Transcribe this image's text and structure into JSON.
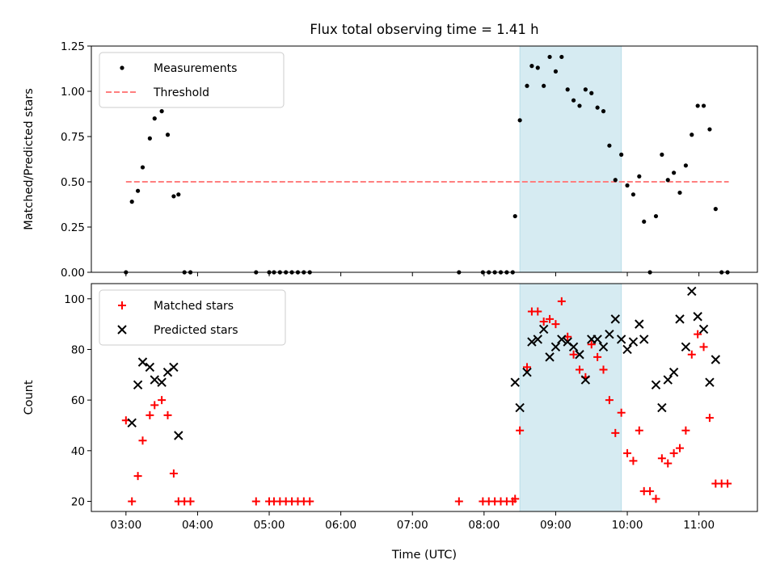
{
  "title": "Flux total observing time = 1.41 h",
  "xlabel": "Time (UTC)",
  "x_ticks": [
    "03:00",
    "04:00",
    "05:00",
    "06:00",
    "07:00",
    "08:00",
    "09:00",
    "10:00",
    "11:00"
  ],
  "colors": {
    "measurement": "#000000",
    "threshold": "#ff7f7f",
    "matched": "#ff0000",
    "predicted": "#000000",
    "shade": "#add8e6"
  },
  "chart_data": [
    {
      "type": "scatter",
      "ylabel": "Matched/Predicted stars",
      "xlim": [
        "02:31",
        "11:49"
      ],
      "ylim": [
        0,
        1.25
      ],
      "y_ticks": [
        "0.00",
        "0.25",
        "0.50",
        "0.75",
        "1.00",
        "1.25"
      ],
      "legend": {
        "placement": "top-left",
        "entries": [
          "Measurements",
          "Threshold"
        ]
      },
      "shaded_span": {
        "start": "08:30",
        "end": "09:55"
      },
      "threshold": {
        "name": "Threshold",
        "y": 0.5,
        "x_range": [
          "03:00",
          "11:25"
        ]
      },
      "series": [
        {
          "name": "Measurements",
          "marker": "dot",
          "points": [
            [
              "03:00",
              0.0
            ],
            [
              "03:05",
              0.39
            ],
            [
              "03:10",
              0.45
            ],
            [
              "03:14",
              0.58
            ],
            [
              "03:20",
              0.74
            ],
            [
              "03:24",
              0.85
            ],
            [
              "03:30",
              0.89
            ],
            [
              "03:35",
              0.76
            ],
            [
              "03:40",
              0.42
            ],
            [
              "03:44",
              0.43
            ],
            [
              "03:49",
              0.0
            ],
            [
              "03:54",
              0.0
            ],
            [
              "04:49",
              0.0
            ],
            [
              "05:00",
              0.0
            ],
            [
              "05:04",
              0.0
            ],
            [
              "05:09",
              0.0
            ],
            [
              "05:14",
              0.0
            ],
            [
              "05:19",
              0.0
            ],
            [
              "05:24",
              0.0
            ],
            [
              "05:29",
              0.0
            ],
            [
              "05:34",
              0.0
            ],
            [
              "07:39",
              0.0
            ],
            [
              "07:59",
              0.0
            ],
            [
              "08:04",
              0.0
            ],
            [
              "08:09",
              0.0
            ],
            [
              "08:14",
              0.0
            ],
            [
              "08:19",
              0.0
            ],
            [
              "08:24",
              0.0
            ],
            [
              "08:26",
              0.31
            ],
            [
              "08:30",
              0.84
            ],
            [
              "08:36",
              1.03
            ],
            [
              "08:40",
              1.14
            ],
            [
              "08:45",
              1.13
            ],
            [
              "08:50",
              1.03
            ],
            [
              "08:55",
              1.19
            ],
            [
              "09:00",
              1.11
            ],
            [
              "09:05",
              1.19
            ],
            [
              "09:10",
              1.01
            ],
            [
              "09:15",
              0.95
            ],
            [
              "09:20",
              0.92
            ],
            [
              "09:25",
              1.01
            ],
            [
              "09:30",
              0.99
            ],
            [
              "09:35",
              0.91
            ],
            [
              "09:40",
              0.89
            ],
            [
              "09:45",
              0.7
            ],
            [
              "09:50",
              0.51
            ],
            [
              "09:55",
              0.65
            ],
            [
              "10:00",
              0.48
            ],
            [
              "10:05",
              0.43
            ],
            [
              "10:10",
              0.53
            ],
            [
              "10:14",
              0.28
            ],
            [
              "10:19",
              0.0
            ],
            [
              "10:24",
              0.31
            ],
            [
              "10:29",
              0.65
            ],
            [
              "10:34",
              0.51
            ],
            [
              "10:39",
              0.55
            ],
            [
              "10:44",
              0.44
            ],
            [
              "10:49",
              0.59
            ],
            [
              "10:54",
              0.76
            ],
            [
              "10:59",
              0.92
            ],
            [
              "11:04",
              0.92
            ],
            [
              "11:09",
              0.79
            ],
            [
              "11:14",
              0.35
            ],
            [
              "11:19",
              0.0
            ],
            [
              "11:24",
              0.0
            ]
          ]
        }
      ]
    },
    {
      "type": "scatter",
      "ylabel": "Count",
      "xlabel": "Time (UTC)",
      "xlim": [
        "02:31",
        "11:49"
      ],
      "ylim": [
        16,
        106
      ],
      "y_ticks": [
        "20",
        "40",
        "60",
        "80",
        "100"
      ],
      "legend": {
        "placement": "top-left",
        "entries": [
          "Matched stars",
          "Predicted stars"
        ]
      },
      "shaded_span": {
        "start": "08:30",
        "end": "09:55"
      },
      "series": [
        {
          "name": "Matched stars",
          "marker": "plus",
          "points": [
            [
              "03:00",
              52
            ],
            [
              "03:05",
              20
            ],
            [
              "03:10",
              30
            ],
            [
              "03:14",
              44
            ],
            [
              "03:20",
              54
            ],
            [
              "03:24",
              58
            ],
            [
              "03:30",
              60
            ],
            [
              "03:35",
              54
            ],
            [
              "03:40",
              31
            ],
            [
              "03:44",
              20
            ],
            [
              "03:49",
              20
            ],
            [
              "03:54",
              20
            ],
            [
              "04:49",
              20
            ],
            [
              "05:00",
              20
            ],
            [
              "05:04",
              20
            ],
            [
              "05:09",
              20
            ],
            [
              "05:14",
              20
            ],
            [
              "05:19",
              20
            ],
            [
              "05:24",
              20
            ],
            [
              "05:29",
              20
            ],
            [
              "05:34",
              20
            ],
            [
              "07:39",
              20
            ],
            [
              "07:59",
              20
            ],
            [
              "08:04",
              20
            ],
            [
              "08:09",
              20
            ],
            [
              "08:14",
              20
            ],
            [
              "08:19",
              20
            ],
            [
              "08:24",
              20
            ],
            [
              "08:26",
              21
            ],
            [
              "08:30",
              48
            ],
            [
              "08:36",
              73
            ],
            [
              "08:40",
              95
            ],
            [
              "08:45",
              95
            ],
            [
              "08:50",
              91
            ],
            [
              "08:55",
              92
            ],
            [
              "09:00",
              90
            ],
            [
              "09:05",
              99
            ],
            [
              "09:10",
              85
            ],
            [
              "09:15",
              78
            ],
            [
              "09:20",
              72
            ],
            [
              "09:25",
              69
            ],
            [
              "09:30",
              82
            ],
            [
              "09:35",
              77
            ],
            [
              "09:40",
              72
            ],
            [
              "09:45",
              60
            ],
            [
              "09:50",
              47
            ],
            [
              "09:55",
              55
            ],
            [
              "10:00",
              39
            ],
            [
              "10:05",
              36
            ],
            [
              "10:10",
              48
            ],
            [
              "10:14",
              24
            ],
            [
              "10:19",
              24
            ],
            [
              "10:24",
              21
            ],
            [
              "10:29",
              37
            ],
            [
              "10:34",
              35
            ],
            [
              "10:39",
              39
            ],
            [
              "10:44",
              41
            ],
            [
              "10:49",
              48
            ],
            [
              "10:54",
              78
            ],
            [
              "10:59",
              86
            ],
            [
              "11:04",
              81
            ],
            [
              "11:09",
              53
            ],
            [
              "11:14",
              27
            ],
            [
              "11:19",
              27
            ],
            [
              "11:24",
              27
            ]
          ]
        },
        {
          "name": "Predicted stars",
          "marker": "x",
          "points": [
            [
              "03:05",
              51
            ],
            [
              "03:10",
              66
            ],
            [
              "03:14",
              75
            ],
            [
              "03:20",
              73
            ],
            [
              "03:24",
              68
            ],
            [
              "03:30",
              67
            ],
            [
              "03:35",
              71
            ],
            [
              "03:40",
              73
            ],
            [
              "03:44",
              46
            ],
            [
              "08:26",
              67
            ],
            [
              "08:30",
              57
            ],
            [
              "08:36",
              71
            ],
            [
              "08:40",
              83
            ],
            [
              "08:45",
              84
            ],
            [
              "08:50",
              88
            ],
            [
              "08:55",
              77
            ],
            [
              "09:00",
              81
            ],
            [
              "09:05",
              84
            ],
            [
              "09:10",
              83
            ],
            [
              "09:15",
              81
            ],
            [
              "09:20",
              78
            ],
            [
              "09:25",
              68
            ],
            [
              "09:30",
              84
            ],
            [
              "09:35",
              84
            ],
            [
              "09:40",
              81
            ],
            [
              "09:45",
              86
            ],
            [
              "09:50",
              92
            ],
            [
              "09:55",
              84
            ],
            [
              "10:00",
              80
            ],
            [
              "10:05",
              83
            ],
            [
              "10:10",
              90
            ],
            [
              "10:14",
              84
            ],
            [
              "10:24",
              66
            ],
            [
              "10:29",
              57
            ],
            [
              "10:34",
              68
            ],
            [
              "10:39",
              71
            ],
            [
              "10:44",
              92
            ],
            [
              "10:49",
              81
            ],
            [
              "10:54",
              103
            ],
            [
              "10:59",
              93
            ],
            [
              "11:04",
              88
            ],
            [
              "11:09",
              67
            ],
            [
              "11:14",
              76
            ]
          ]
        }
      ]
    }
  ]
}
